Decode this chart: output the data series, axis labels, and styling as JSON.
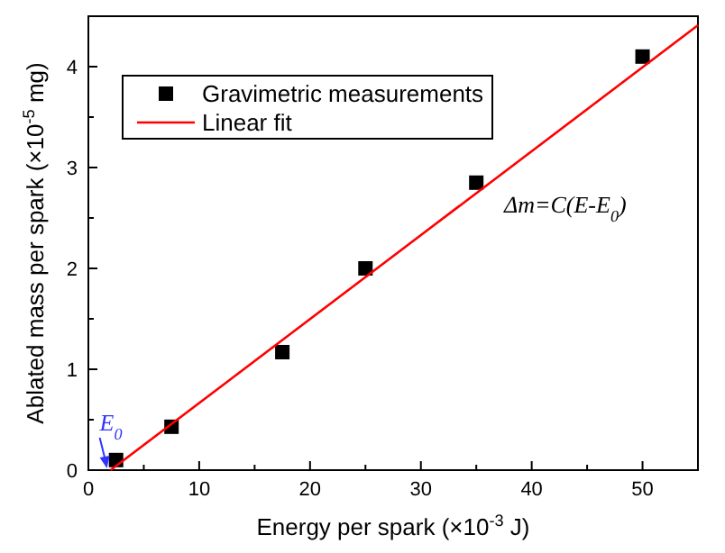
{
  "chart_data": {
    "type": "scatter",
    "xlabel": "Energy per spark (×10$^{-3}$ J)",
    "ylabel": "Ablated mass per spark (×10$^{-5}$ mg)",
    "xlim": [
      0,
      55
    ],
    "ylim": [
      0,
      4.5
    ],
    "xticks": [
      0,
      {
        "value": 5,
        "label": null
      },
      10,
      {
        "value": 15,
        "label": null
      },
      20,
      {
        "value": 25,
        "label": null
      },
      30,
      {
        "value": 35,
        "label": null
      },
      40,
      {
        "value": 45,
        "label": null
      },
      50,
      {
        "value": 55,
        "label": null
      }
    ],
    "yticks": [
      0,
      {
        "value": 0.5,
        "label": null
      },
      1,
      {
        "value": 1.5,
        "label": null
      },
      2,
      {
        "value": 2.5,
        "label": null
      },
      3,
      {
        "value": 3.5,
        "label": null
      },
      4,
      {
        "value": 4.5,
        "label": null
      }
    ],
    "series": [
      {
        "name": "Gravimetric measurements",
        "color": "#000000",
        "marker": "square",
        "x": [
          2.5,
          7.5,
          17.5,
          25,
          35,
          50
        ],
        "values": [
          0.1,
          0.43,
          1.17,
          2.0,
          2.85,
          4.1
        ]
      },
      {
        "name": "Linear fit",
        "type": "line",
        "color": "#ff0000",
        "marker": "none",
        "x": [
          2,
          55
        ],
        "values": [
          0,
          4.41
        ]
      }
    ],
    "annotations": [
      {
        "text": "E$_{0}$",
        "x": 2,
        "y": 0
      },
      "Δm=C(E-E$_{0}$)"
    ],
    "legend": "top left",
    "grid": false
  }
}
